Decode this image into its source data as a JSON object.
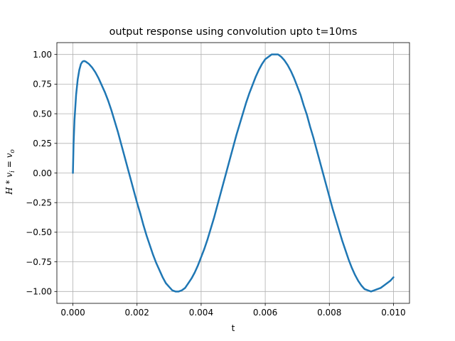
{
  "chart_data": {
    "type": "line",
    "title": "output response using convolution upto t=10ms",
    "xlabel": "t",
    "ylabel": {
      "H": "H",
      "op": " * ",
      "v1": "v",
      "sub1": "i",
      "eq": " = ",
      "v2": "v",
      "sub2": "o"
    },
    "xlim": [
      -0.0005,
      0.0105
    ],
    "ylim": [
      -1.1,
      1.1
    ],
    "xticks": [
      {
        "value": 0.0,
        "label": "0.000"
      },
      {
        "value": 0.002,
        "label": "0.002"
      },
      {
        "value": 0.004,
        "label": "0.004"
      },
      {
        "value": 0.006,
        "label": "0.006"
      },
      {
        "value": 0.008,
        "label": "0.008"
      },
      {
        "value": 0.01,
        "label": "0.010"
      }
    ],
    "yticks": [
      {
        "value": -1.0,
        "label": "−1.00"
      },
      {
        "value": -0.75,
        "label": "−0.75"
      },
      {
        "value": -0.5,
        "label": "−0.50"
      },
      {
        "value": -0.25,
        "label": "−0.25"
      },
      {
        "value": 0.0,
        "label": "0.00"
      },
      {
        "value": 0.25,
        "label": "0.25"
      },
      {
        "value": 0.5,
        "label": "0.50"
      },
      {
        "value": 0.75,
        "label": "0.75"
      },
      {
        "value": 1.0,
        "label": "1.00"
      }
    ],
    "grid": true,
    "series": [
      {
        "color": "#1f77b4",
        "x": [
          0.0,
          2e-05,
          5e-05,
          0.0001,
          0.00015,
          0.0002,
          0.00025,
          0.0003,
          0.00035,
          0.0004,
          0.00045,
          0.0005,
          0.0006,
          0.0007,
          0.0008,
          0.0009,
          0.001,
          0.0011,
          0.0012,
          0.0013,
          0.0014,
          0.0015,
          0.0016,
          0.0017,
          0.0018,
          0.0019,
          0.002,
          0.0021,
          0.0022,
          0.0023,
          0.0024,
          0.0025,
          0.0026,
          0.0027,
          0.0028,
          0.0029,
          0.003,
          0.0031,
          0.0032,
          0.0033,
          0.0034,
          0.0035,
          0.0036,
          0.0037,
          0.0038,
          0.0039,
          0.004,
          0.0041,
          0.0042,
          0.0043,
          0.0044,
          0.0045,
          0.0046,
          0.0047,
          0.0048,
          0.0049,
          0.005,
          0.0051,
          0.0052,
          0.0053,
          0.0054,
          0.0055,
          0.0056,
          0.0057,
          0.0058,
          0.0059,
          0.006,
          0.0061,
          0.0062,
          0.0063,
          0.0064,
          0.0065,
          0.0066,
          0.0067,
          0.0068,
          0.0069,
          0.007,
          0.0071,
          0.0072,
          0.0073,
          0.0074,
          0.0075,
          0.0076,
          0.0077,
          0.0078,
          0.0079,
          0.008,
          0.0081,
          0.0082,
          0.0083,
          0.0084,
          0.0085,
          0.0086,
          0.0087,
          0.0088,
          0.0089,
          0.009,
          0.0091,
          0.0092,
          0.0093,
          0.0094,
          0.0095,
          0.0096,
          0.0097,
          0.0098,
          0.0099,
          0.01
        ],
        "y": [
          0.0,
          0.24,
          0.45,
          0.66,
          0.79,
          0.87,
          0.92,
          0.94,
          0.945,
          0.94,
          0.93,
          0.92,
          0.89,
          0.85,
          0.8,
          0.74,
          0.68,
          0.61,
          0.53,
          0.44,
          0.35,
          0.25,
          0.15,
          0.05,
          -0.05,
          -0.15,
          -0.25,
          -0.34,
          -0.44,
          -0.53,
          -0.61,
          -0.69,
          -0.76,
          -0.82,
          -0.88,
          -0.93,
          -0.96,
          -0.99,
          -1.0,
          -1.0,
          -0.99,
          -0.97,
          -0.93,
          -0.89,
          -0.84,
          -0.78,
          -0.71,
          -0.64,
          -0.56,
          -0.47,
          -0.38,
          -0.28,
          -0.18,
          -0.08,
          0.02,
          0.12,
          0.22,
          0.32,
          0.41,
          0.5,
          0.59,
          0.67,
          0.74,
          0.81,
          0.87,
          0.92,
          0.96,
          0.98,
          1.0,
          1.0,
          1.0,
          0.98,
          0.95,
          0.91,
          0.86,
          0.8,
          0.73,
          0.66,
          0.57,
          0.49,
          0.39,
          0.3,
          0.2,
          0.1,
          0.0,
          -0.1,
          -0.2,
          -0.3,
          -0.39,
          -0.48,
          -0.57,
          -0.65,
          -0.73,
          -0.8,
          -0.86,
          -0.91,
          -0.95,
          -0.98,
          -0.99,
          -1.0,
          -0.99,
          -0.98,
          -0.97,
          -0.95,
          -0.93,
          -0.91,
          -0.88
        ]
      }
    ]
  }
}
